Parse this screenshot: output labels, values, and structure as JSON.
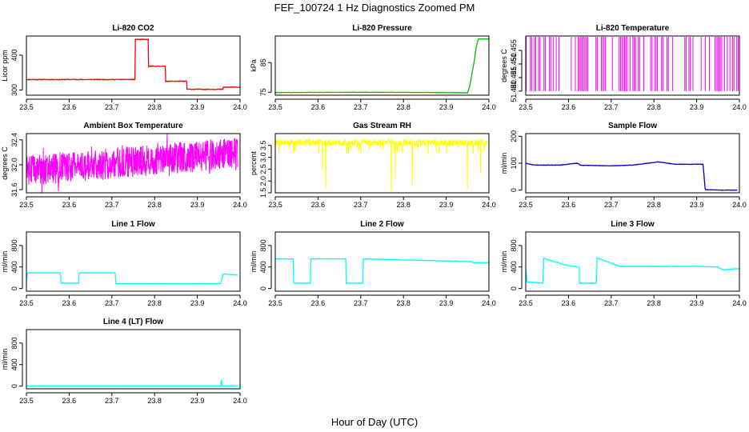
{
  "figure": {
    "title": "FEF_100724  1 Hz Diagnostics Zoomed PM",
    "xlabel": "Hour of Day (UTC)"
  },
  "chart_data": [
    {
      "type": "line",
      "title": "Li-820 CO2",
      "ylabel": "Licor ppm",
      "color": "#ff0000",
      "xlim": [
        23.5,
        24.0
      ],
      "ylim": [
        285,
        455
      ],
      "xticks": [
        "23.5",
        "23.6",
        "23.7",
        "23.8",
        "23.9",
        "24.0"
      ],
      "yticks": [
        "300",
        "400"
      ],
      "series": [
        {
          "x": [
            23.5,
            23.754,
            23.755,
            23.785,
            23.786,
            23.825,
            23.826,
            23.875,
            23.876,
            23.96,
            23.961,
            24.0
          ],
          "y": [
            330,
            330,
            445,
            445,
            368,
            368,
            325,
            325,
            302,
            302,
            308,
            308
          ]
        }
      ]
    },
    {
      "type": "line",
      "title": "Li-820 Pressure",
      "ylabel": "kPa",
      "color": "#00bb00",
      "xlim": [
        23.5,
        24.0
      ],
      "ylim": [
        74,
        94
      ],
      "xticks": [
        "23.5",
        "23.6",
        "23.7",
        "23.8",
        "23.9",
        "24.0"
      ],
      "yticks": [
        "75",
        "85"
      ],
      "series": [
        {
          "x": [
            23.5,
            23.7,
            23.9,
            23.95,
            23.955,
            23.96,
            23.965,
            23.97,
            23.975,
            24.0
          ],
          "y": [
            74.9,
            75.0,
            74.9,
            74.8,
            77,
            81,
            85,
            90,
            93,
            93
          ]
        }
      ]
    },
    {
      "type": "line",
      "title": "Li-820 Temperature",
      "ylabel": "degrees C",
      "color": "#ff00ff",
      "xlim": [
        23.5,
        24.0
      ],
      "ylim": [
        51.4385,
        51.4603
      ],
      "xticks": [
        "23.5",
        "23.6",
        "23.7",
        "23.8",
        "23.9",
        "24.0"
      ],
      "yticks": [
        "51.440",
        "51.445",
        "51.450",
        "51.455"
      ],
      "series": [
        {
          "x": [
            23.5,
            24.0
          ],
          "y": [
            51.44,
            51.46
          ]
        }
      ]
    },
    {
      "type": "line",
      "title": "Ambient Box Temperature",
      "ylabel": "degrees C",
      "color": "#ff00ff",
      "xlim": [
        23.5,
        24.0
      ],
      "ylim": [
        31.55,
        32.5
      ],
      "xticks": [
        "23.5",
        "23.6",
        "23.7",
        "23.8",
        "23.9",
        "24.0"
      ],
      "yticks": [
        "31.6",
        "32.0",
        "32.4"
      ],
      "series": [
        {
          "x": [
            23.5,
            24.0
          ],
          "y": [
            31.9,
            32.3
          ]
        }
      ]
    },
    {
      "type": "line",
      "title": "Gas Stream RH",
      "ylabel": "percent",
      "color": "#ffff00",
      "xlim": [
        23.5,
        24.0
      ],
      "ylim": [
        1.5,
        4.0
      ],
      "xticks": [
        "23.5",
        "23.6",
        "23.7",
        "23.8",
        "23.9",
        "24.0"
      ],
      "yticks": [
        "1.5",
        "2.0",
        "2.5",
        "3.0",
        "3.5"
      ],
      "series": [
        {
          "x": [
            23.5,
            24.0
          ],
          "y": [
            3.5,
            3.8
          ]
        }
      ]
    },
    {
      "type": "line",
      "title": "Sample Flow",
      "ylabel": "ml/min",
      "color": "#0000cc",
      "xlim": [
        23.5,
        24.0
      ],
      "ylim": [
        -10,
        210
      ],
      "xticks": [
        "23.5",
        "23.6",
        "23.7",
        "23.8",
        "23.9",
        "24.0"
      ],
      "yticks": [
        "0",
        "100",
        "200"
      ],
      "series": [
        {
          "x": [
            23.5,
            23.52,
            23.58,
            23.62,
            23.63,
            23.65,
            23.7,
            23.75,
            23.8,
            23.81,
            23.85,
            23.9,
            23.915,
            23.92,
            23.96,
            23.995
          ],
          "y": [
            100,
            93,
            93,
            100,
            92,
            92,
            90,
            93,
            103,
            105,
            96,
            96,
            96,
            2,
            0,
            0
          ]
        }
      ]
    },
    {
      "type": "line",
      "title": "Line 1 Flow",
      "ylabel": "ml/min",
      "color": "#00ffff",
      "xlim": [
        23.5,
        24.0
      ],
      "ylim": [
        -50,
        1050
      ],
      "xticks": [
        "23.5",
        "23.6",
        "23.7",
        "23.8",
        "23.9",
        "24.0"
      ],
      "yticks": [
        "0",
        "400",
        "800"
      ],
      "series": [
        {
          "x": [
            23.5,
            23.502,
            23.58,
            23.581,
            23.622,
            23.623,
            23.708,
            23.709,
            23.955,
            23.96,
            23.995
          ],
          "y": [
            100,
            290,
            290,
            100,
            100,
            290,
            290,
            90,
            90,
            270,
            250
          ]
        }
      ]
    },
    {
      "type": "line",
      "title": "Line 2 Flow",
      "ylabel": "ml/min",
      "color": "#00ffff",
      "xlim": [
        23.5,
        24.0
      ],
      "ylim": [
        -50,
        1050
      ],
      "xticks": [
        "23.5",
        "23.6",
        "23.7",
        "23.8",
        "23.9",
        "24.0"
      ],
      "yticks": [
        "0",
        "400",
        "800"
      ],
      "series": [
        {
          "x": [
            23.5,
            23.542,
            23.543,
            23.582,
            23.583,
            23.665,
            23.666,
            23.705,
            23.706,
            23.96,
            23.962,
            24.0
          ],
          "y": [
            550,
            550,
            100,
            100,
            550,
            550,
            100,
            100,
            550,
            500,
            480,
            480
          ]
        }
      ]
    },
    {
      "type": "line",
      "title": "Line 3 Flow",
      "ylabel": "ml/min",
      "color": "#00ffff",
      "xlim": [
        23.5,
        24.0
      ],
      "ylim": [
        -50,
        1050
      ],
      "xticks": [
        "23.5",
        "23.6",
        "23.7",
        "23.8",
        "23.9",
        "24.0"
      ],
      "yticks": [
        "0",
        "400",
        "800"
      ],
      "series": [
        {
          "x": [
            23.5,
            23.503,
            23.54,
            23.542,
            23.6,
            23.625,
            23.626,
            23.665,
            23.667,
            23.72,
            23.9,
            23.95,
            23.96,
            24.0
          ],
          "y": [
            380,
            120,
            100,
            560,
            420,
            400,
            100,
            100,
            570,
            410,
            410,
            400,
            350,
            370
          ]
        }
      ]
    },
    {
      "type": "line",
      "title": "Line 4 (LT) Flow",
      "ylabel": "ml/min",
      "color": "#00ffff",
      "xlim": [
        23.5,
        24.0
      ],
      "ylim": [
        -50,
        1050
      ],
      "xticks": [
        "23.5",
        "23.6",
        "23.7",
        "23.8",
        "23.9",
        "24.0"
      ],
      "yticks": [
        "0",
        "400",
        "800"
      ],
      "series": [
        {
          "x": [
            23.5,
            23.955,
            23.956,
            23.958,
            23.96,
            23.995
          ],
          "y": [
            5,
            5,
            140,
            10,
            5,
            5
          ]
        }
      ]
    }
  ]
}
